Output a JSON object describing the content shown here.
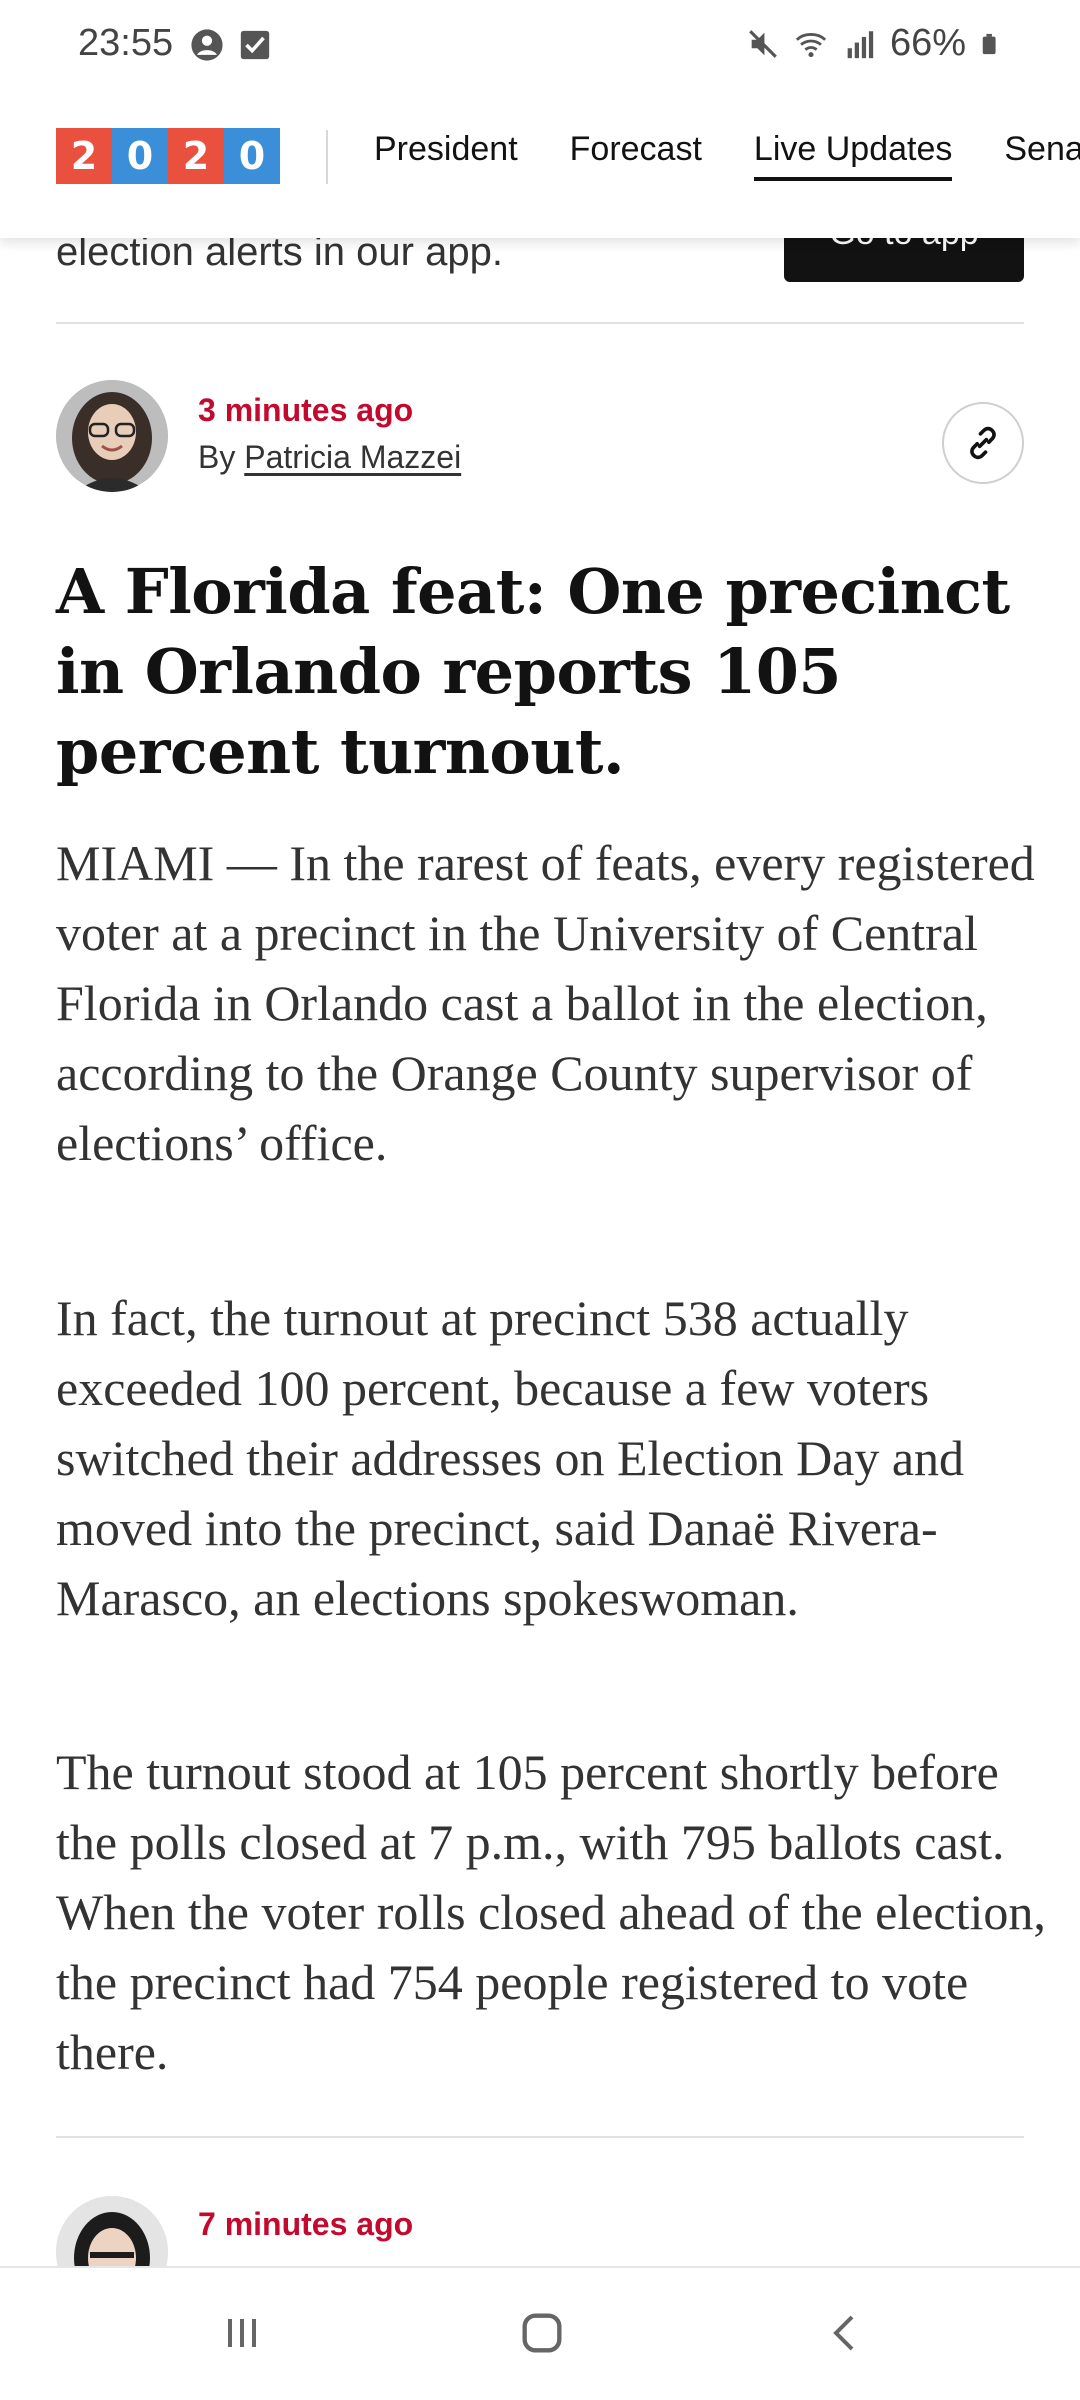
{
  "status_bar": {
    "time": "23:55",
    "battery": "66%",
    "icons": [
      "account-circle-icon",
      "checkbox-icon",
      "mute-icon",
      "wifi-icon",
      "signal-icon",
      "battery-icon"
    ]
  },
  "header": {
    "logo_digits": [
      "2",
      "0",
      "2",
      "0"
    ],
    "nav_items": [
      {
        "label": "President"
      },
      {
        "label": "Forecast"
      },
      {
        "label": "Live Updates"
      },
      {
        "label": "Sena"
      }
    ],
    "active_nav": "Live Updates"
  },
  "promo": {
    "text": "election alerts in our app.",
    "button_label": "Go to app"
  },
  "post": {
    "time_ago": "3 minutes ago",
    "by_prefix": "By",
    "author": "Patricia Mazzei",
    "headline": "A Florida feat: One precinct in Orlando reports 105 percent turnout.",
    "paragraphs": [
      "MIAMI — In the rarest of feats, every registered voter at a precinct in the University of Central Florida in Orlando cast a ballot in the election, according to the Orange County supervisor of elections’ office.",
      "In fact, the turnout at precinct 538 actually exceeded 100 percent, because a few voters switched their addresses on Election Day and moved into the precinct, said Danaë Rivera-Marasco, an elections spokeswoman.",
      "The turnout stood at 105 percent shortly before the polls closed at 7 p.m., with 795 ballots cast. When the voter rolls closed ahead of the election, the precinct had 754 people registered to vote there."
    ]
  },
  "next_post": {
    "time_ago": "7 minutes ago"
  },
  "colors": {
    "accent_red": "#c3092d",
    "logo_red": "#e9503e",
    "logo_blue": "#3b8fd8"
  }
}
